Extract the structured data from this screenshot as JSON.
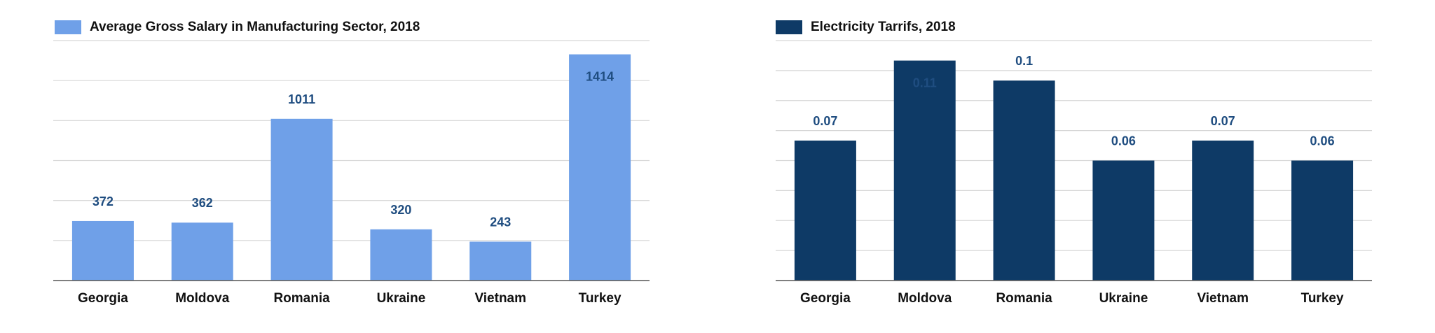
{
  "colors": {
    "salary_bar": "#6fa0e8",
    "tariff_bar": "#0e3a66",
    "value_label": "#1f4d80",
    "grid": "#d6d6d6",
    "axis": "#555555",
    "tick_label": "#111111"
  },
  "chart_data": [
    {
      "type": "bar",
      "title": "Average Gross Salary in Manufacturing Sector, 2018",
      "categories": [
        "Georgia",
        "Moldova",
        "Romania",
        "Ukraine",
        "Vietnam",
        "Turkey"
      ],
      "series": [
        {
          "name": "Average Gross Salary in Manufacturing Sector, 2018",
          "values": [
            372,
            362,
            1011,
            320,
            243,
            1414
          ]
        }
      ],
      "value_labels": [
        "372",
        "362",
        "1011",
        "320",
        "243",
        "1414"
      ],
      "ylim": [
        0,
        1500
      ],
      "grid": true,
      "legend_position": "top-left"
    },
    {
      "type": "bar",
      "title": "Electricity Tarrifs, 2018",
      "categories": [
        "Georgia",
        "Moldova",
        "Romania",
        "Ukraine",
        "Vietnam",
        "Turkey"
      ],
      "series": [
        {
          "name": "Electricity Tarrifs, 2018",
          "values": [
            0.07,
            0.11,
            0.1,
            0.06,
            0.07,
            0.06
          ]
        }
      ],
      "value_labels": [
        "0.07",
        "0.11",
        "0.1",
        "0.06",
        "0.07",
        "0.06"
      ],
      "ylim": [
        0,
        0.12
      ],
      "grid": true,
      "legend_position": "top-left"
    }
  ]
}
